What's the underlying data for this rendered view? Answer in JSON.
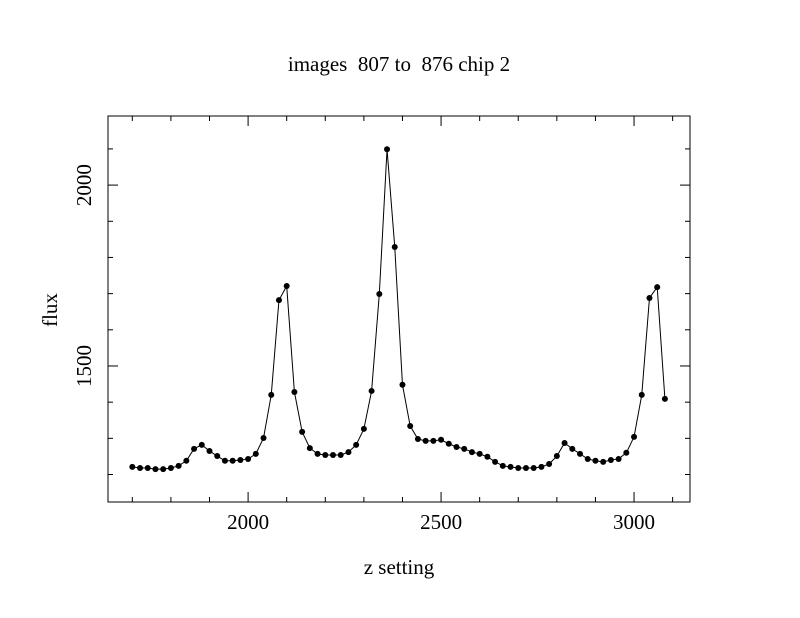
{
  "chart_data": {
    "type": "line",
    "title": "images  807 to  876 chip 2",
    "xlabel": "z setting",
    "ylabel": "flux",
    "x": [
      1700,
      1720,
      1740,
      1760,
      1780,
      1800,
      1820,
      1840,
      1860,
      1880,
      1900,
      1920,
      1940,
      1960,
      1980,
      2000,
      2020,
      2040,
      2060,
      2080,
      2100,
      2120,
      2140,
      2160,
      2180,
      2200,
      2220,
      2240,
      2260,
      2280,
      2300,
      2320,
      2340,
      2360,
      2380,
      2400,
      2420,
      2440,
      2460,
      2480,
      2500,
      2520,
      2540,
      2560,
      2580,
      2600,
      2620,
      2640,
      2660,
      2680,
      2700,
      2720,
      2740,
      2760,
      2780,
      2800,
      2820,
      2840,
      2860,
      2880,
      2900,
      2920,
      2940,
      2960,
      2980,
      3000,
      3020,
      3040,
      3060,
      3080
    ],
    "values": [
      1221,
      1218,
      1218,
      1215,
      1215,
      1218,
      1224,
      1238,
      1271,
      1282,
      1265,
      1251,
      1238,
      1238,
      1240,
      1243,
      1257,
      1301,
      1420,
      1682,
      1721,
      1428,
      1318,
      1273,
      1257,
      1254,
      1254,
      1254,
      1262,
      1282,
      1326,
      1431,
      1699,
      2099,
      1829,
      1448,
      1334,
      1298,
      1293,
      1293,
      1296,
      1285,
      1276,
      1271,
      1262,
      1257,
      1249,
      1235,
      1224,
      1221,
      1218,
      1218,
      1218,
      1221,
      1229,
      1251,
      1287,
      1271,
      1257,
      1243,
      1238,
      1235,
      1240,
      1243,
      1260,
      1304,
      1420,
      1688,
      1718,
      1409
    ],
    "color": "#000000",
    "xlim": [
      1637,
      3145
    ],
    "ylim": [
      1124,
      2191
    ],
    "xticks": [
      2000,
      2500,
      3000
    ],
    "yticks": [
      1500,
      2000
    ],
    "xminorticks": [
      1700,
      1800,
      1900,
      2100,
      2200,
      2300,
      2400,
      2600,
      2700,
      2800,
      2900,
      3100
    ],
    "yminorticks": [
      1200,
      1300,
      1400,
      1600,
      1700,
      1800,
      1900,
      2100
    ]
  }
}
